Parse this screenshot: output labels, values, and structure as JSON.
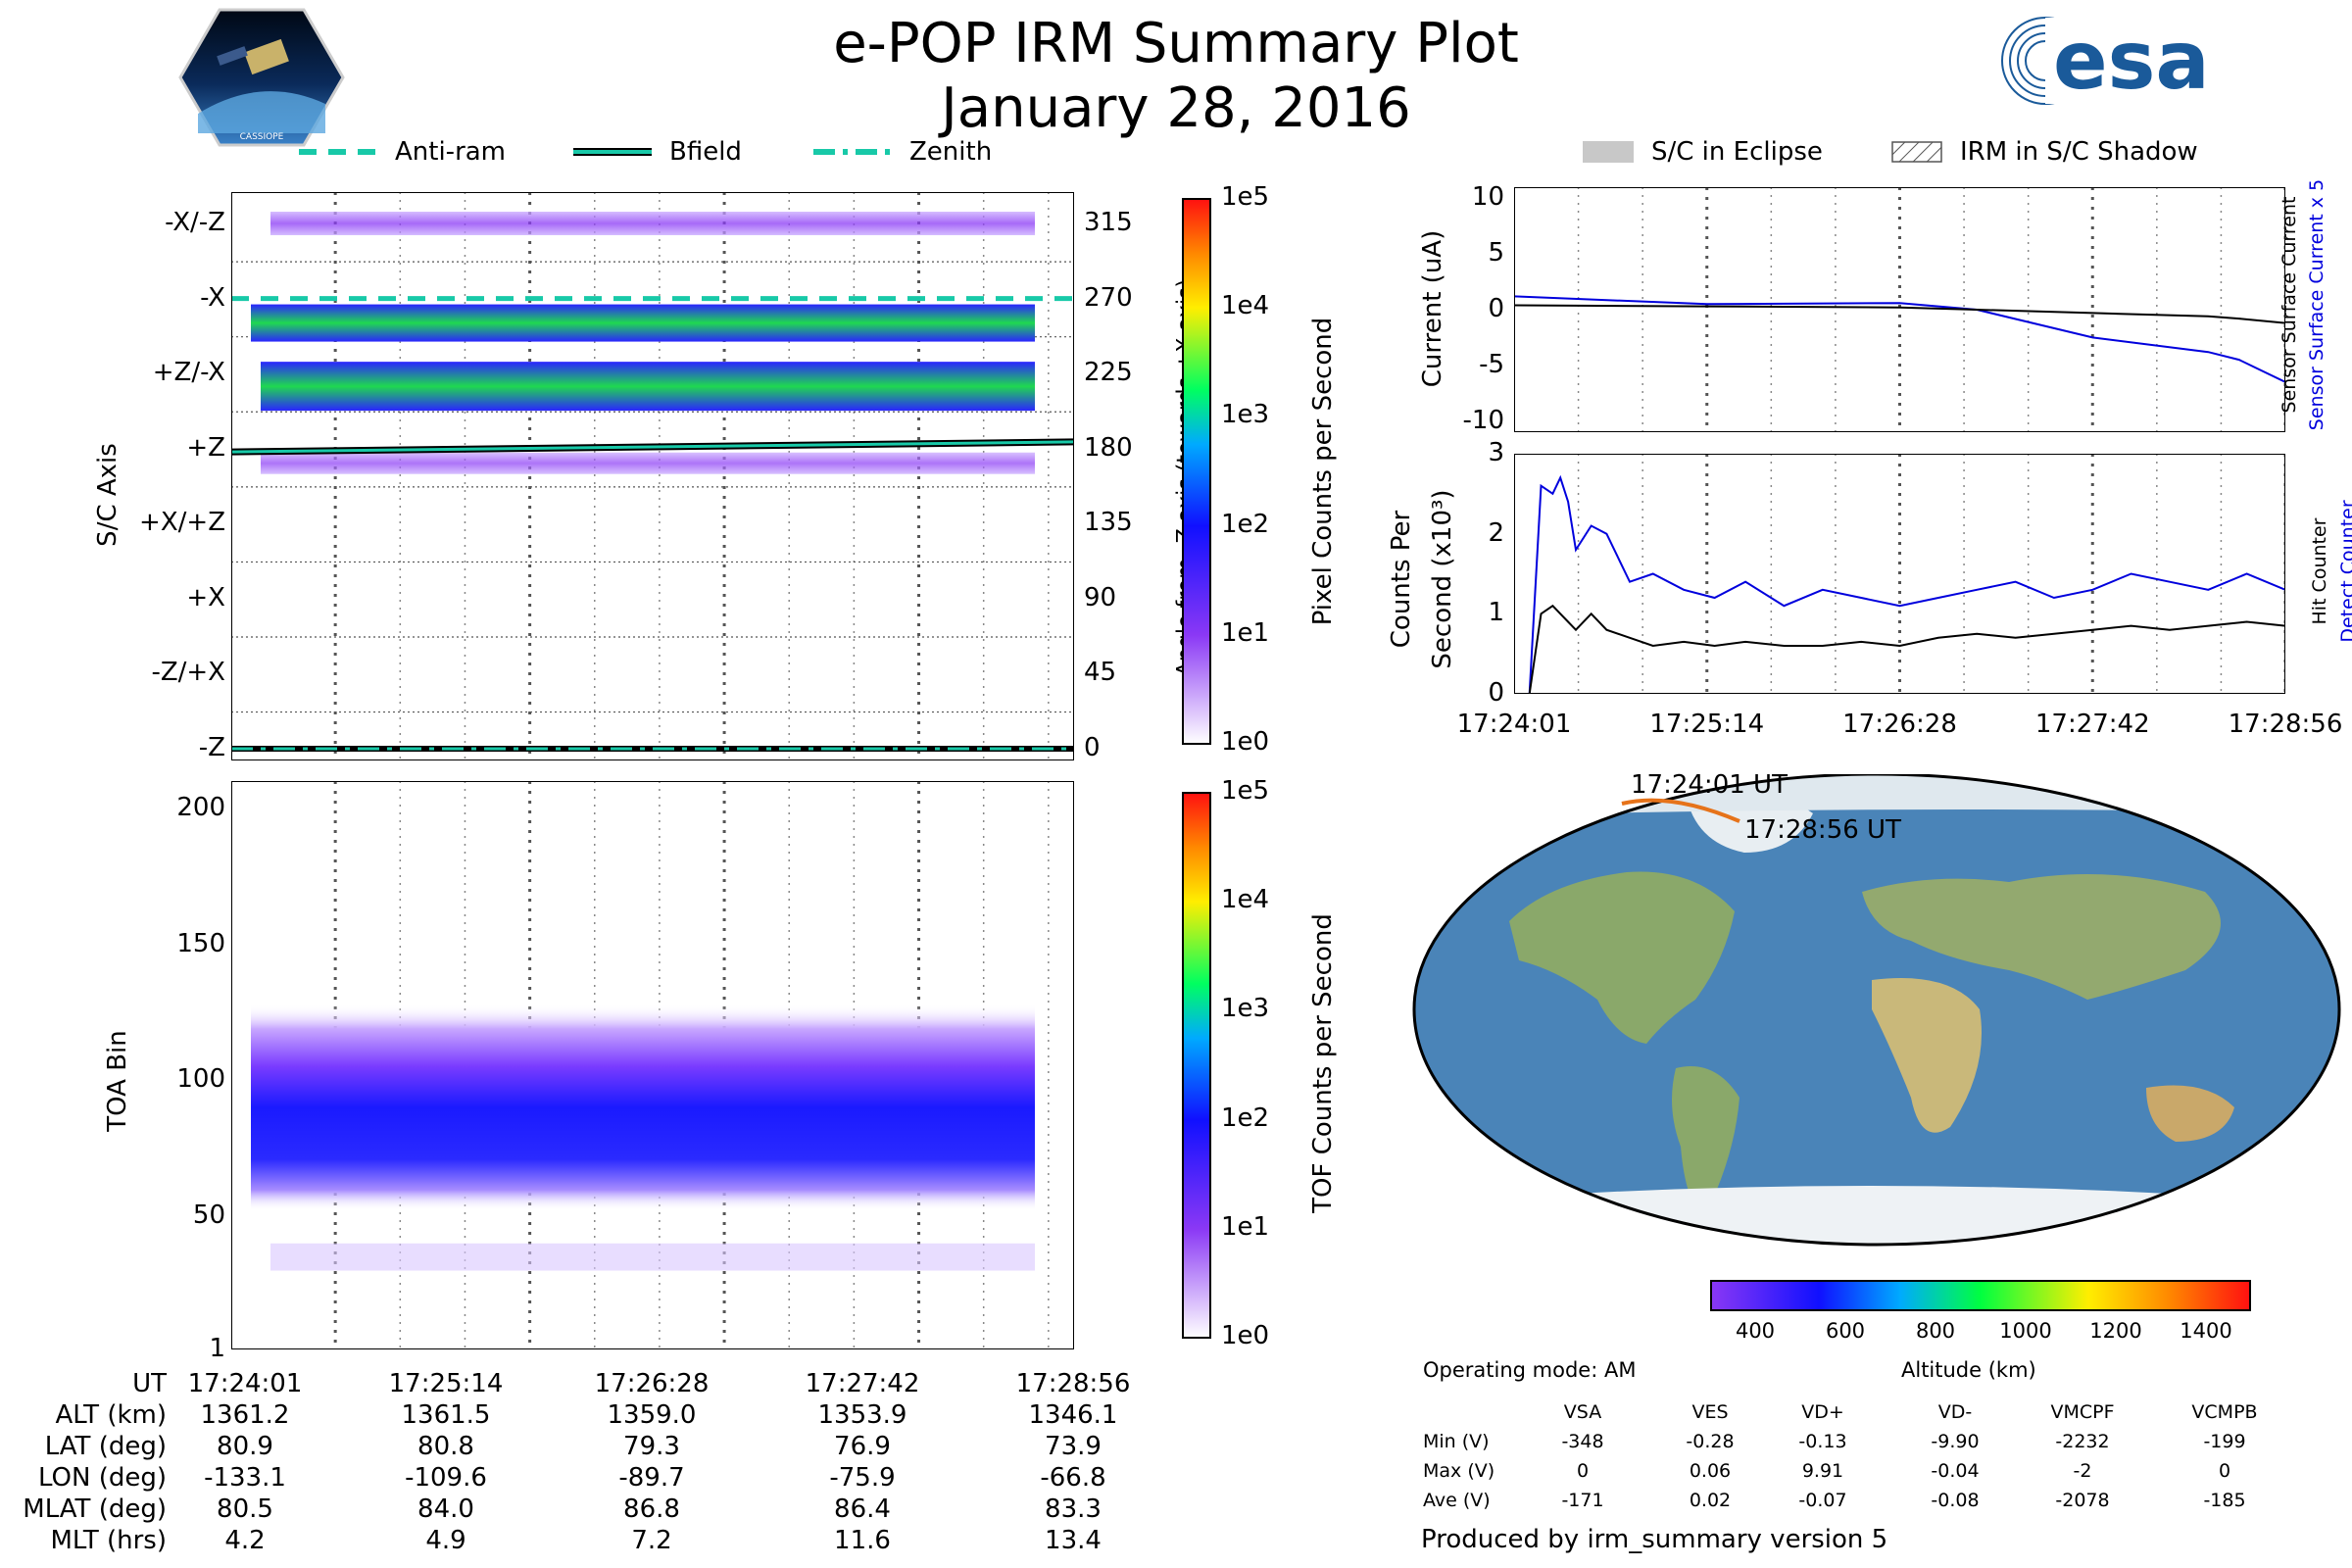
{
  "title": "e-POP IRM Summary Plot",
  "date": "January 28, 2016",
  "logo_left_label": "CASSIOPE",
  "logo_right": {
    "text": "esa"
  },
  "legend_left": [
    {
      "label": "Anti-ram",
      "style": "dash"
    },
    {
      "label": "Bfield",
      "style": "solid"
    },
    {
      "label": "Zenith",
      "style": "dashdot"
    }
  ],
  "legend_right": [
    {
      "label": "S/C in Eclipse",
      "style": "gray-fill"
    },
    {
      "label": "IRM in S/C Shadow",
      "style": "hatch"
    }
  ],
  "colors": {
    "line_accent": "#18c9a8",
    "blue_series": "#0000dd",
    "black_series": "#000000"
  },
  "chart_data": [
    {
      "type": "heatmap",
      "name_id": "sc-axis",
      "ylabel": "S/C Axis",
      "y_categories": [
        "-X/-Z",
        "-X",
        "+Z/-X",
        "+Z",
        "+X/+Z",
        "+X",
        "-Z/+X",
        "-Z"
      ],
      "right_ticks": [
        "315",
        "270",
        "225",
        "180",
        "135",
        "90",
        "45",
        "0"
      ],
      "right_label": "Angle from -Z axis (towards +X axis)",
      "colorbar_label": "Pixel Counts per Second",
      "colorbar_ticks": [
        "1e5",
        "1e4",
        "1e3",
        "1e2",
        "1e1",
        "1e0"
      ],
      "lines": {
        "anti_ram_deg": 270,
        "bfield_deg_start": 178,
        "bfield_deg_end": 184,
        "zenith_deg": 0
      },
      "xlim": [
        "17:24:01",
        "17:28:56"
      ]
    },
    {
      "type": "heatmap",
      "name_id": "toa",
      "ylabel": "TOA Bin",
      "yticks": [
        "200",
        "150",
        "100",
        "50",
        "1"
      ],
      "ylim": [
        1,
        210
      ],
      "colorbar_label": "TOF Counts per Second",
      "colorbar_ticks": [
        "1e5",
        "1e4",
        "1e3",
        "1e2",
        "1e1",
        "1e0"
      ],
      "x_ticks": [
        "17:24:01",
        "17:25:14",
        "17:26:28",
        "17:27:42",
        "17:28:56"
      ]
    },
    {
      "type": "line",
      "name_id": "current",
      "ylabel": "Current (uA)",
      "yticks": [
        "10",
        "5",
        "0",
        "-5",
        "-10"
      ],
      "ylim": [
        -11,
        11
      ],
      "right_label_blue": "Sensor Surface Current x 5",
      "right_label_black": "Sensor Surface Current",
      "x": [
        0,
        0.25,
        0.5,
        0.6,
        0.75,
        0.9,
        0.94,
        1.0
      ],
      "series": [
        {
          "name": "Sensor Surface Current x 5",
          "color": "#0000dd",
          "values": [
            1.2,
            0.5,
            0.6,
            0.0,
            -2.5,
            -3.8,
            -4.5,
            -6.5
          ]
        },
        {
          "name": "Sensor Surface Current",
          "color": "#000000",
          "values": [
            0.4,
            0.3,
            0.2,
            0.0,
            -0.3,
            -0.6,
            -0.8,
            -1.2
          ]
        }
      ]
    },
    {
      "type": "line",
      "name_id": "counts",
      "ylabel_line1": "Counts Per",
      "ylabel_line2": "Second (x10³)",
      "yticks": [
        "3",
        "2",
        "1",
        "0"
      ],
      "ylim": [
        0,
        3
      ],
      "right_label_blue": "Detect Counter",
      "right_label_black": "Hit Counter",
      "x_ticks": [
        "17:24:01",
        "17:25:14",
        "17:26:28",
        "17:27:42",
        "17:28:56"
      ],
      "x": [
        0,
        0.02,
        0.035,
        0.05,
        0.06,
        0.07,
        0.08,
        0.1,
        0.12,
        0.15,
        0.18,
        0.22,
        0.26,
        0.3,
        0.35,
        0.4,
        0.45,
        0.5,
        0.55,
        0.6,
        0.65,
        0.7,
        0.75,
        0.8,
        0.85,
        0.9,
        0.95,
        1.0
      ],
      "series": [
        {
          "name": "Detect Counter",
          "color": "#0000dd",
          "values": [
            0,
            0,
            2.6,
            2.5,
            2.7,
            2.4,
            1.8,
            2.1,
            2.0,
            1.4,
            1.5,
            1.3,
            1.2,
            1.4,
            1.1,
            1.3,
            1.2,
            1.1,
            1.2,
            1.3,
            1.4,
            1.2,
            1.3,
            1.5,
            1.4,
            1.3,
            1.5,
            1.3
          ]
        },
        {
          "name": "Hit Counter",
          "color": "#000000",
          "values": [
            0,
            0,
            1.0,
            1.1,
            1.0,
            0.9,
            0.8,
            1.0,
            0.8,
            0.7,
            0.6,
            0.65,
            0.6,
            0.65,
            0.6,
            0.6,
            0.65,
            0.6,
            0.7,
            0.75,
            0.7,
            0.75,
            0.8,
            0.85,
            0.8,
            0.85,
            0.9,
            0.85
          ]
        }
      ]
    }
  ],
  "map": {
    "start_label": "17:24:01 UT",
    "end_label": "17:28:56 UT",
    "colorbar_ticks": [
      "400",
      "600",
      "800",
      "1000",
      "1200",
      "1400"
    ],
    "colorbar_label": "Altitude (km)"
  },
  "ephemeris": {
    "rows": [
      {
        "label": "UT",
        "values": [
          "17:24:01",
          "17:25:14",
          "17:26:28",
          "17:27:42",
          "17:28:56"
        ]
      },
      {
        "label": "ALT (km)",
        "values": [
          "1361.2",
          "1361.5",
          "1359.0",
          "1353.9",
          "1346.1"
        ]
      },
      {
        "label": "LAT (deg)",
        "values": [
          "80.9",
          "80.8",
          "79.3",
          "76.9",
          "73.9"
        ]
      },
      {
        "label": "LON (deg)",
        "values": [
          "-133.1",
          "-109.6",
          "-89.7",
          "-75.9",
          "-66.8"
        ]
      },
      {
        "label": "MLAT (deg)",
        "values": [
          "80.5",
          "84.0",
          "86.8",
          "86.4",
          "83.3"
        ]
      },
      {
        "label": "MLT (hrs)",
        "values": [
          "4.2",
          "4.9",
          "7.2",
          "11.6",
          "13.4"
        ]
      }
    ]
  },
  "voltages": {
    "mode": "Operating mode: AM",
    "headers": [
      "VSA",
      "VES",
      "VD+",
      "VD-",
      "VMCPF",
      "VCMPB"
    ],
    "rows": [
      {
        "label": "Min (V)",
        "values": [
          "-348",
          "-0.28",
          "-0.13",
          "-9.90",
          "-2232",
          "-199"
        ]
      },
      {
        "label": "Max (V)",
        "values": [
          "0",
          "0.06",
          "9.91",
          "-0.04",
          "-2",
          "0"
        ]
      },
      {
        "label": "Ave (V)",
        "values": [
          "-171",
          "0.02",
          "-0.07",
          "-0.08",
          "-2078",
          "-185"
        ]
      }
    ],
    "footer": "Produced by irm_summary version 5"
  }
}
